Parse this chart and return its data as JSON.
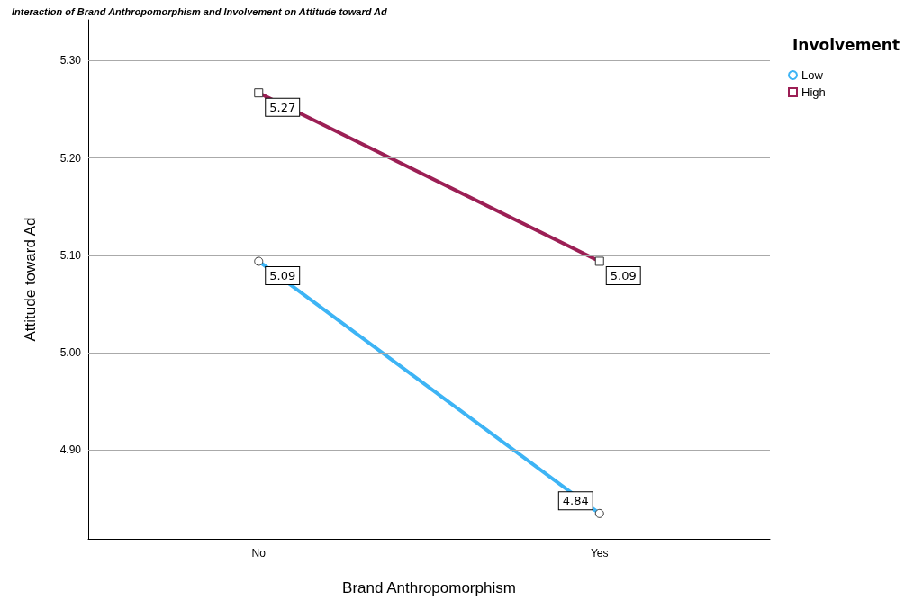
{
  "chart_data": {
    "type": "line",
    "title": "Interaction of Brand Anthropomorphism and Involvement on Attitude toward Ad",
    "xlabel": "Brand Anthropomorphism",
    "ylabel": "Attitude toward Ad",
    "legend_title": "Involvement",
    "categories": [
      "No",
      "Yes"
    ],
    "series": [
      {
        "name": "Low",
        "color": "#3db4f5",
        "values": [
          5.094,
          4.835
        ],
        "value_labels": [
          "5.09",
          "4.84"
        ],
        "marker": "circle"
      },
      {
        "name": "High",
        "color": "#9c1f55",
        "values": [
          5.267,
          5.094
        ],
        "value_labels": [
          "5.27",
          "5.09"
        ],
        "marker": "square"
      }
    ],
    "ylim": [
      4.809,
      5.342
    ],
    "yticks": [
      {
        "value": 4.9,
        "label": "4.90"
      },
      {
        "value": 5.0,
        "label": "5.00"
      },
      {
        "value": 5.1,
        "label": "5.10"
      },
      {
        "value": 5.2,
        "label": "5.20"
      },
      {
        "value": 5.3,
        "label": "5.30"
      }
    ],
    "grid": "y",
    "legend": "top right",
    "line_style": "solid"
  }
}
